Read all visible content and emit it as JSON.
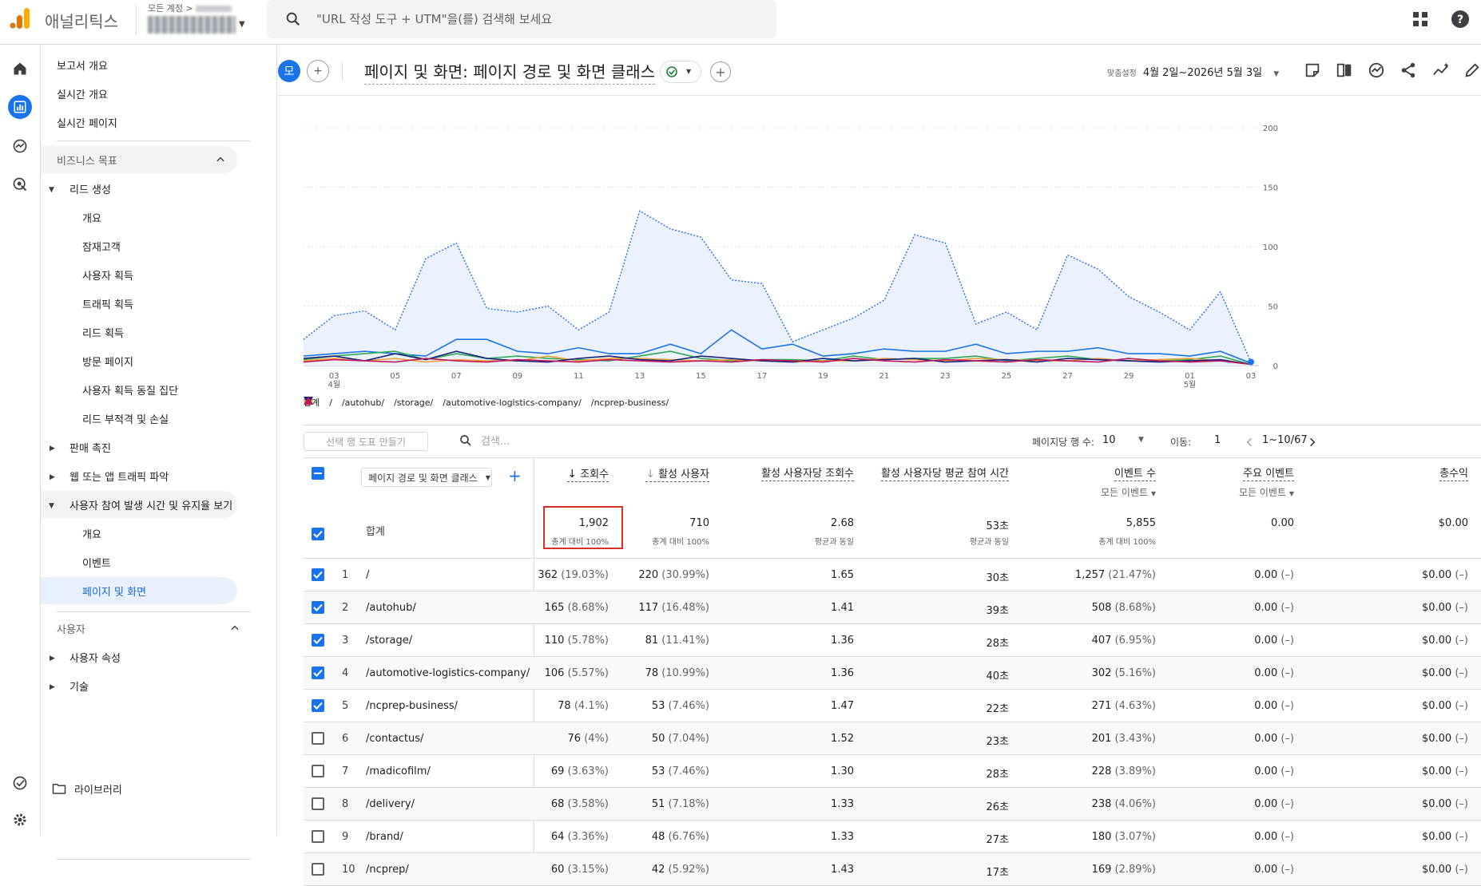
{
  "app": {
    "name": "애널리틱스",
    "account_prefix": "모든 계정 >",
    "search_placeholder": "\"URL 작성 도구 + UTM\"을(를) 검색해 보세요",
    "brand_color": "#f9ab00",
    "accent_color": "#1a73e8"
  },
  "nav": {
    "top_items": [
      "보고서 개요",
      "실시간 개요",
      "실시간 페이지"
    ],
    "section_business": "비즈니스 목표",
    "lead_gen": "리드 생성",
    "lead_children": [
      "개요",
      "잠재고객",
      "사용자 획득",
      "트래픽 획득",
      "리드 획득",
      "방문 페이지",
      "사용자 획득 동질 집단",
      "리드 부적격 및 손실"
    ],
    "sales": "판매 촉진",
    "web_traffic": "웹 또는 앱 트래픽 파악",
    "engagement": "사용자 참여 발생 시간 및 유지율 보기",
    "engagement_children": [
      "개요",
      "이벤트",
      "페이지 및 화면"
    ],
    "section_user": "사용자",
    "user_attr": "사용자 속성",
    "tech": "기술",
    "library": "라이브러리"
  },
  "header": {
    "compare_chip": "모",
    "title": "페이지 및 화면: 페이지 경로 및 화면 클래스",
    "date_label": "맞춤설정",
    "date_range": "4월 2일~2026년 5월 3일"
  },
  "chart_data": {
    "type": "line",
    "x": [
      "04-02",
      "04-03",
      "04-04",
      "04-05",
      "04-06",
      "04-07",
      "04-08",
      "04-09",
      "04-10",
      "04-11",
      "04-12",
      "04-13",
      "04-14",
      "04-15",
      "04-16",
      "04-17",
      "04-18",
      "04-19",
      "04-20",
      "04-21",
      "04-22",
      "04-23",
      "04-24",
      "04-25",
      "04-26",
      "04-27",
      "04-28",
      "04-29",
      "04-30",
      "05-01",
      "05-02",
      "05-03"
    ],
    "x_tick_labels": [
      "03",
      "05",
      "07",
      "09",
      "11",
      "13",
      "15",
      "17",
      "19",
      "21",
      "23",
      "25",
      "27",
      "29",
      "01",
      "03"
    ],
    "x_sub_labels": {
      "03": "4월",
      "01": "5월"
    },
    "y_ticks": [
      "0",
      "50",
      "100",
      "150",
      "200"
    ],
    "ylim": [
      0,
      200
    ],
    "series": [
      {
        "name": "합계",
        "color": "#1a73e8",
        "values": [
          22,
          42,
          46,
          30,
          90,
          103,
          48,
          45,
          50,
          30,
          45,
          130,
          115,
          108,
          72,
          69,
          20,
          30,
          40,
          55,
          110,
          103,
          35,
          45,
          30,
          93,
          81,
          58,
          45,
          30,
          62,
          3
        ]
      },
      {
        "name": "/",
        "color": "#1a73e8",
        "values": [
          8,
          10,
          12,
          10,
          8,
          22,
          22,
          12,
          10,
          15,
          10,
          10,
          18,
          10,
          30,
          14,
          18,
          8,
          10,
          14,
          12,
          12,
          18,
          10,
          12,
          12,
          15,
          10,
          10,
          8,
          12,
          2
        ]
      },
      {
        "name": "/autohub/",
        "color": "#34a853",
        "values": [
          5,
          8,
          10,
          12,
          5,
          10,
          6,
          8,
          6,
          5,
          4,
          8,
          12,
          6,
          4,
          5,
          5,
          4,
          8,
          5,
          6,
          6,
          8,
          4,
          6,
          8,
          5,
          4,
          4,
          5,
          8,
          1
        ]
      },
      {
        "name": "/storage/",
        "color": "#f4a13a",
        "values": [
          4,
          6,
          4,
          6,
          3,
          5,
          4,
          4,
          8,
          4,
          6,
          6,
          5,
          4,
          5,
          4,
          3,
          4,
          4,
          6,
          5,
          4,
          6,
          5,
          4,
          4,
          6,
          4,
          5,
          6,
          4,
          1
        ]
      },
      {
        "name": "/automotive-logistics-company/",
        "color": "#1a237e",
        "values": [
          6,
          8,
          4,
          10,
          5,
          12,
          6,
          4,
          3,
          6,
          8,
          5,
          4,
          8,
          6,
          4,
          3,
          6,
          4,
          5,
          6,
          3,
          4,
          5,
          3,
          6,
          5,
          4,
          3,
          4,
          5,
          1
        ]
      },
      {
        "name": "/ncprep-business/",
        "color": "#c2185b",
        "values": [
          3,
          5,
          4,
          3,
          6,
          4,
          3,
          5,
          4,
          3,
          5,
          4,
          3,
          4,
          3,
          5,
          4,
          3,
          6,
          4,
          3,
          5,
          4,
          3,
          5,
          4,
          3,
          6,
          4,
          3,
          4,
          1
        ]
      }
    ]
  },
  "controls": {
    "make_chart": "선택 행 도표 만들기",
    "search": "검색...",
    "rows_label": "페이지당 행 수:",
    "rows_value": "10",
    "goto_label": "이동:",
    "goto_value": "1",
    "range": "1~10/67"
  },
  "table": {
    "dim_select": "페이지 경로 및 화면 클래스",
    "columns": [
      "조회수",
      "활성 사용자",
      "활성 사용자당 조회수",
      "활성 사용자당 평균 참여 시간",
      "이벤트 수",
      "주요 이벤트",
      "총수익"
    ],
    "col_sub": [
      "",
      "",
      "",
      "",
      "모든 이벤트",
      "모든 이벤트",
      ""
    ],
    "total_label": "합계",
    "totals": [
      "1,902",
      "710",
      "2.68",
      "53초",
      "5,855",
      "0.00",
      "$0.00"
    ],
    "total_subs": [
      "총계 대비 100%",
      "총계 대비 100%",
      "평균과 동일",
      "평균과 동일",
      "총계 대비 100%",
      "",
      ""
    ],
    "rows": [
      {
        "n": "1",
        "path": "/",
        "views": "362",
        "vp": "(19.03%)",
        "users": "220",
        "up": "(30.99%)",
        "vpu": "1.65",
        "time": "30초",
        "ev": "1,257",
        "ep": "(21.47%)",
        "key": "0.00",
        "kp": "(–)",
        "rev": "$0.00",
        "rp": "(–)",
        "checked": true
      },
      {
        "n": "2",
        "path": "/autohub/",
        "views": "165",
        "vp": "(8.68%)",
        "users": "117",
        "up": "(16.48%)",
        "vpu": "1.41",
        "time": "39초",
        "ev": "508",
        "ep": "(8.68%)",
        "key": "0.00",
        "kp": "(–)",
        "rev": "$0.00",
        "rp": "(–)",
        "checked": true
      },
      {
        "n": "3",
        "path": "/storage/",
        "views": "110",
        "vp": "(5.78%)",
        "users": "81",
        "up": "(11.41%)",
        "vpu": "1.36",
        "time": "28초",
        "ev": "407",
        "ep": "(6.95%)",
        "key": "0.00",
        "kp": "(–)",
        "rev": "$0.00",
        "rp": "(–)",
        "checked": true
      },
      {
        "n": "4",
        "path": "/automotive-logistics-company/",
        "views": "106",
        "vp": "(5.57%)",
        "users": "78",
        "up": "(10.99%)",
        "vpu": "1.36",
        "time": "40초",
        "ev": "302",
        "ep": "(5.16%)",
        "key": "0.00",
        "kp": "(–)",
        "rev": "$0.00",
        "rp": "(–)",
        "checked": true
      },
      {
        "n": "5",
        "path": "/ncprep-business/",
        "views": "78",
        "vp": "(4.1%)",
        "users": "53",
        "up": "(7.46%)",
        "vpu": "1.47",
        "time": "22초",
        "ev": "271",
        "ep": "(4.63%)",
        "key": "0.00",
        "kp": "(–)",
        "rev": "$0.00",
        "rp": "(–)",
        "checked": true
      },
      {
        "n": "6",
        "path": "/contactus/",
        "views": "76",
        "vp": "(4%)",
        "users": "50",
        "up": "(7.04%)",
        "vpu": "1.52",
        "time": "23초",
        "ev": "201",
        "ep": "(3.43%)",
        "key": "0.00",
        "kp": "(–)",
        "rev": "$0.00",
        "rp": "(–)",
        "checked": false
      },
      {
        "n": "7",
        "path": "/madicofilm/",
        "views": "69",
        "vp": "(3.63%)",
        "users": "53",
        "up": "(7.46%)",
        "vpu": "1.30",
        "time": "28초",
        "ev": "228",
        "ep": "(3.89%)",
        "key": "0.00",
        "kp": "(–)",
        "rev": "$0.00",
        "rp": "(–)",
        "checked": false
      },
      {
        "n": "8",
        "path": "/delivery/",
        "views": "68",
        "vp": "(3.58%)",
        "users": "51",
        "up": "(7.18%)",
        "vpu": "1.33",
        "time": "26초",
        "ev": "238",
        "ep": "(4.06%)",
        "key": "0.00",
        "kp": "(–)",
        "rev": "$0.00",
        "rp": "(–)",
        "checked": false
      },
      {
        "n": "9",
        "path": "/brand/",
        "views": "64",
        "vp": "(3.36%)",
        "users": "48",
        "up": "(6.76%)",
        "vpu": "1.33",
        "time": "27초",
        "ev": "180",
        "ep": "(3.07%)",
        "key": "0.00",
        "kp": "(–)",
        "rev": "$0.00",
        "rp": "(–)",
        "checked": false
      },
      {
        "n": "10",
        "path": "/ncprep/",
        "views": "60",
        "vp": "(3.15%)",
        "users": "42",
        "up": "(5.92%)",
        "vpu": "1.43",
        "time": "17초",
        "ev": "169",
        "ep": "(2.89%)",
        "key": "0.00",
        "kp": "(–)",
        "rev": "$0.00",
        "rp": "(–)",
        "checked": false
      }
    ]
  }
}
